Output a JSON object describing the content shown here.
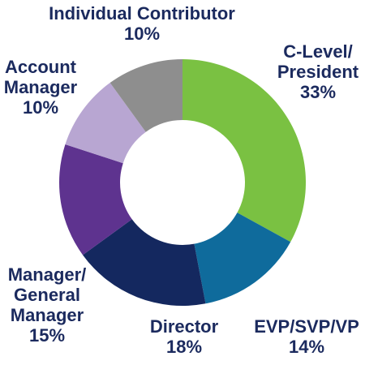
{
  "chart_data": {
    "type": "pie",
    "variant": "donut",
    "title": "",
    "legend": "none",
    "slices": [
      {
        "name": "C-Level/ President",
        "value": 33,
        "label_lines": [
          "C-Level/",
          "President",
          "33%"
        ],
        "color": "#7ac142"
      },
      {
        "name": "EVP/SVP/VP",
        "value": 14,
        "label_lines": [
          "EVP/SVP/VP",
          "14%"
        ],
        "color": "#0f6b9c"
      },
      {
        "name": "Director",
        "value": 18,
        "label_lines": [
          "Director",
          "18%"
        ],
        "color": "#14285f"
      },
      {
        "name": "Manager/ General Manager",
        "value": 15,
        "label_lines": [
          "Manager/",
          "General",
          "Manager",
          "15%"
        ],
        "color": "#5e338f"
      },
      {
        "name": "Account Manager",
        "value": 10,
        "label_lines": [
          "Account",
          "Manager",
          "10%"
        ],
        "color": "#b8a6d2"
      },
      {
        "name": "Individual Contributor",
        "value": 10,
        "label_lines": [
          "Individual Contributor",
          "10%"
        ],
        "color": "#8e8e8e"
      }
    ]
  }
}
